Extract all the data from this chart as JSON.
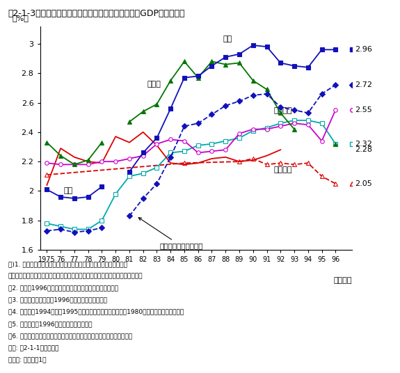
{
  "title": "第2-1-3図　主要国における研究費の対国内総生産（GDP）比の推移",
  "years": [
    1975,
    1976,
    1977,
    1978,
    1979,
    1980,
    1981,
    1982,
    1983,
    1984,
    1985,
    1986,
    1987,
    1988,
    1989,
    1990,
    1991,
    1992,
    1993,
    1994,
    1995,
    1996
  ],
  "xtick_labels": [
    "1975",
    "76",
    "77",
    "78",
    "79",
    "80",
    "81",
    "82",
    "83",
    "84",
    "85",
    "86",
    "87",
    "88",
    "89",
    "90",
    "91",
    "92",
    "93",
    "94",
    "95",
    "96"
  ],
  "japan": [
    2.01,
    1.96,
    1.95,
    1.96,
    2.03,
    null,
    2.13,
    2.26,
    2.36,
    2.56,
    2.77,
    2.78,
    2.85,
    2.91,
    2.93,
    2.99,
    2.98,
    2.87,
    2.85,
    2.84,
    2.96,
    2.96
  ],
  "japan_nat": [
    1.73,
    1.74,
    1.72,
    1.73,
    1.75,
    null,
    1.83,
    1.95,
    2.05,
    2.23,
    2.44,
    2.46,
    2.52,
    2.58,
    2.61,
    2.65,
    2.66,
    2.57,
    2.55,
    2.53,
    2.66,
    2.72
  ],
  "germany": [
    2.33,
    2.24,
    2.18,
    2.21,
    2.33,
    null,
    2.47,
    2.54,
    2.59,
    2.75,
    2.88,
    2.77,
    2.88,
    2.86,
    2.87,
    2.75,
    2.69,
    2.53,
    2.42,
    null,
    null,
    2.32
  ],
  "usa": [
    2.04,
    2.29,
    2.23,
    2.2,
    2.19,
    2.37,
    2.33,
    2.4,
    2.31,
    2.19,
    2.18,
    2.19,
    2.22,
    2.23,
    2.2,
    2.21,
    2.24,
    2.28,
    null,
    null,
    null,
    null
  ],
  "france_pink": [
    2.19,
    2.18,
    2.18,
    2.18,
    2.2,
    2.2,
    2.22,
    2.24,
    2.32,
    2.35,
    2.34,
    2.26,
    2.27,
    2.28,
    2.39,
    2.42,
    2.42,
    2.44,
    2.46,
    2.45,
    2.34,
    2.55
  ],
  "uk": [
    2.11,
    null,
    null,
    null,
    null,
    null,
    null,
    null,
    null,
    null,
    2.19,
    null,
    null,
    null,
    2.2,
    2.22,
    2.18,
    2.19,
    2.18,
    2.19,
    2.1,
    2.05
  ],
  "france_cyan": [
    1.78,
    1.76,
    1.74,
    1.74,
    1.8,
    1.98,
    2.1,
    2.12,
    2.16,
    2.26,
    2.27,
    2.31,
    2.32,
    2.34,
    2.36,
    2.41,
    2.43,
    2.46,
    2.48,
    2.48,
    2.46,
    2.32
  ],
  "japan_color": "#1111bb",
  "japan_nat_color": "#1111bb",
  "germany_color": "#007700",
  "usa_color": "#dd0000",
  "france_pink_color": "#cc00cc",
  "uk_color": "#dd0000",
  "france_cyan_color": "#00aaaa",
  "end_vals": {
    "japan": 2.96,
    "japan_nat": 2.72,
    "france_pink": 2.55,
    "france_cyan": 2.32,
    "usa": 2.28,
    "uk": 2.05
  },
  "notes_line1": "注)1. 国際比較を行うため、各国とも人文・社会科学を含めている。",
  "notes_line2": "　　なお、日本については内数である自然科学のみの値を併せて表示している。",
  "notes_line3": "　2. 日本の1996年度はソフトウェア業を除いた値である。",
  "notes_line4": "　3. 米国は暦年の値で、1996年度は暫定値である。",
  "notes_line5": "　4. ドイツの1994年度、1995年度は推定値である。また、1980年度は統計数値がない。",
  "notes_line6": "　5. フランスの1996年度は暫定値である。",
  "notes_line7": "　6. イギリスの統計数値のない年度は前後の年度を直線で結んでいる。",
  "notes_line8": "資料: 第2-1-1図に同じ。",
  "notes_line9": "（参照: 付属資料1）"
}
